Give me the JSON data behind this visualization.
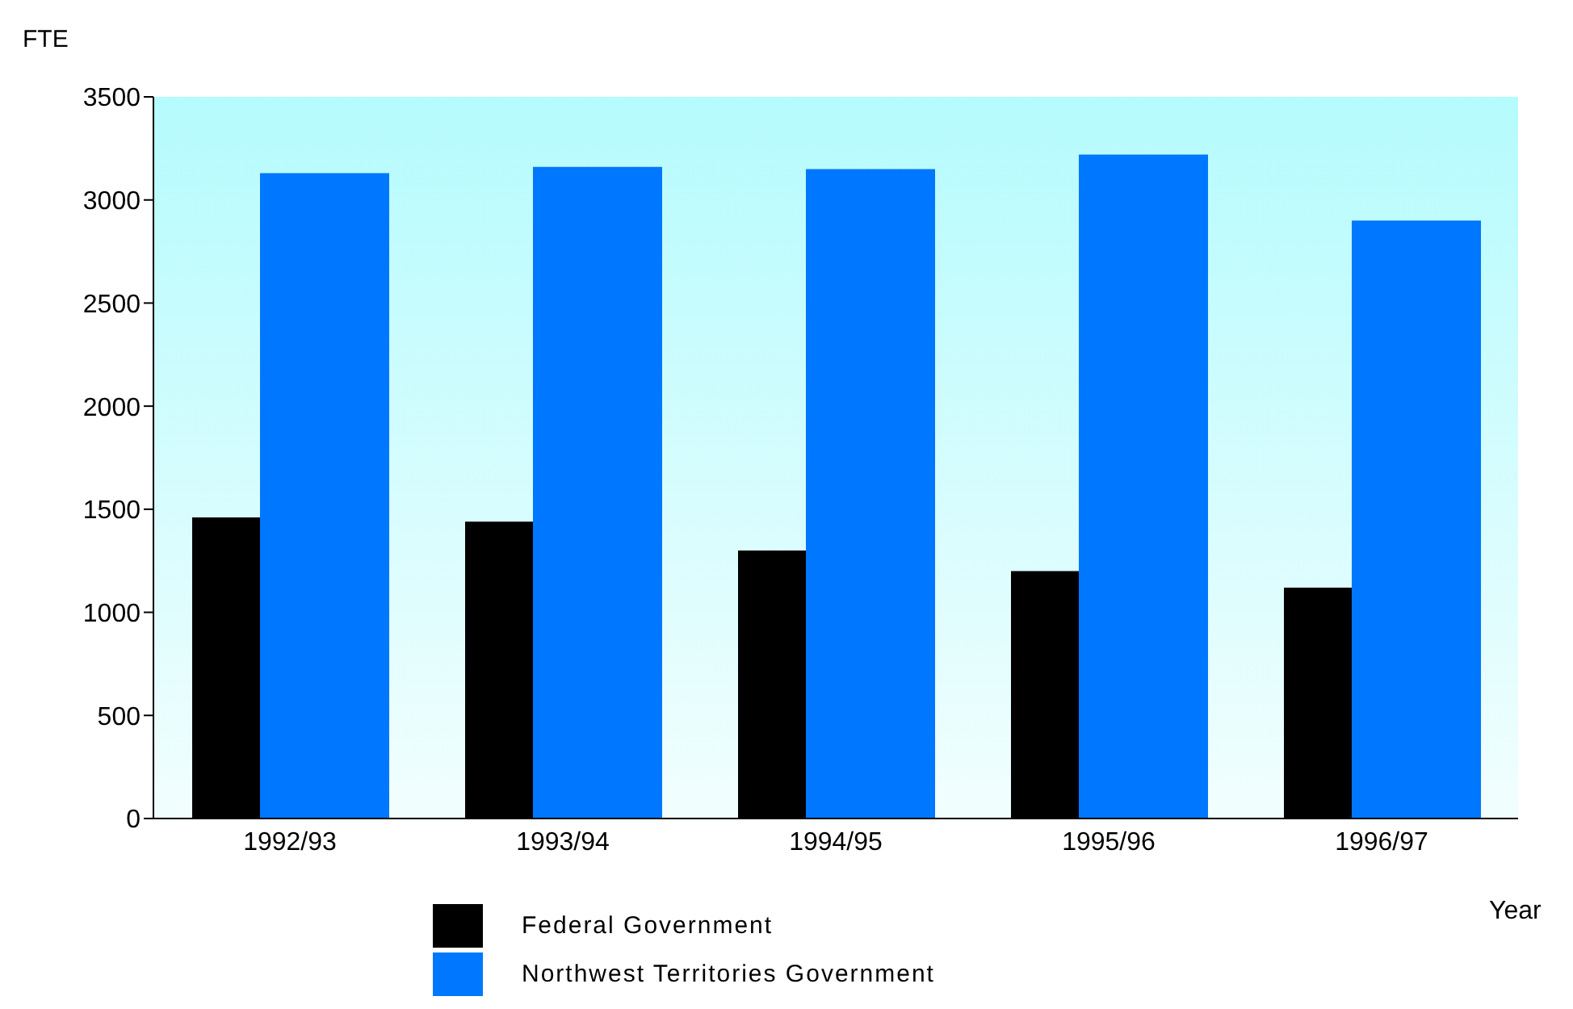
{
  "chart_data": {
    "type": "bar",
    "ylabel": "FTE",
    "xlabel": "Year",
    "categories": [
      "1992/93",
      "1993/94",
      "1994/95",
      "1995/96",
      "1996/97"
    ],
    "series": [
      {
        "name": "Federal Government",
        "color": "#000000",
        "values": [
          1460,
          1440,
          1300,
          1200,
          1120
        ]
      },
      {
        "name": "Northwest Territories Government",
        "color": "#0077ff",
        "values": [
          3130,
          3160,
          3150,
          3220,
          2900
        ]
      }
    ],
    "ylim": [
      0,
      3500
    ],
    "yticks": [
      0,
      500,
      1000,
      1500,
      2000,
      2500,
      3000,
      3500
    ],
    "grid": false,
    "legend": "bottom"
  }
}
